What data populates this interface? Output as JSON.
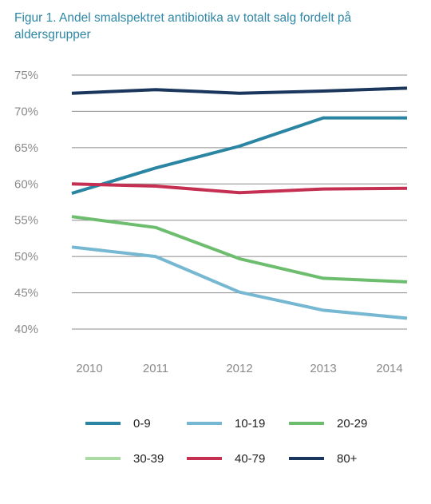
{
  "chart_data": {
    "type": "line",
    "title": "Figur 1. Andel smalspektret antibiotika av totalt salg fordelt på aldersgrupper",
    "xlabel": "",
    "ylabel": "",
    "categories": [
      "2010",
      "2011",
      "2012",
      "2013",
      "2014"
    ],
    "ylim": [
      40,
      75
    ],
    "yticks": [
      "75%",
      "70%",
      "65%",
      "60%",
      "55%",
      "50%",
      "45%",
      "40%"
    ],
    "grid": "horizontal",
    "legend_position": "bottom",
    "series": [
      {
        "name": "0-9",
        "color": "#2a85a3",
        "values": [
          58.7,
          62.2,
          65.2,
          69.1,
          69.1
        ]
      },
      {
        "name": "10-19",
        "color": "#76b7d2",
        "values": [
          51.3,
          50.0,
          45.1,
          42.6,
          41.5
        ]
      },
      {
        "name": "20-29",
        "color": "#6dbd6f",
        "values": [
          55.5,
          54.0,
          49.7,
          47.0,
          46.5
        ]
      },
      {
        "name": "30-39",
        "color": "#a9dba3",
        "values": [
          null,
          null,
          null,
          null,
          null
        ]
      },
      {
        "name": "40-79",
        "color": "#c42f52",
        "values": [
          60.0,
          59.7,
          58.8,
          59.3,
          59.4
        ]
      },
      {
        "name": "80+",
        "color": "#1b365c",
        "values": [
          72.5,
          73.0,
          72.5,
          72.8,
          73.2
        ]
      }
    ]
  }
}
